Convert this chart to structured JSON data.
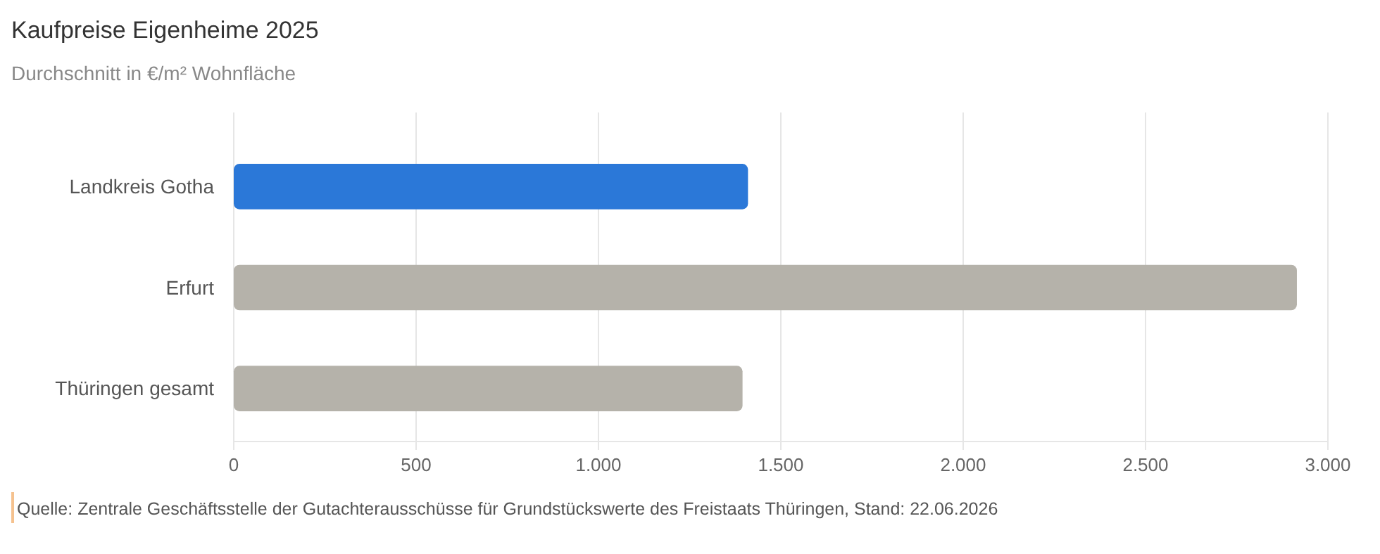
{
  "chart_data": {
    "type": "bar",
    "orientation": "horizontal",
    "title": "Kaufpreise Eigenheime 2025",
    "subtitle": "Durchschnitt in €/m² Wohnfläche",
    "categories": [
      "Landkreis Gotha",
      "Erfurt",
      "Thüringen gesamt"
    ],
    "values": [
      1410,
      2915,
      1395
    ],
    "colors": [
      "#2b78d8",
      "#b5b2aa",
      "#b5b2aa"
    ],
    "xlim": [
      0,
      3000
    ],
    "xticks": [
      0,
      {
        "value": 500,
        "label": "500"
      },
      {
        "value": 1000,
        "label": "1.000"
      },
      {
        "value": 1500,
        "label": "1.500"
      },
      {
        "value": 2000,
        "label": "2.000"
      },
      {
        "value": 2500,
        "label": "2.500"
      },
      {
        "value": 3000,
        "label": "3.000"
      }
    ],
    "grid": "x",
    "annotations": [
      "Quelle: Zentrale Geschäftsstelle der Gutachterausschüsse für Grundstückswerte des Freistaats Thüringen, Stand: 22.06.2026"
    ]
  }
}
